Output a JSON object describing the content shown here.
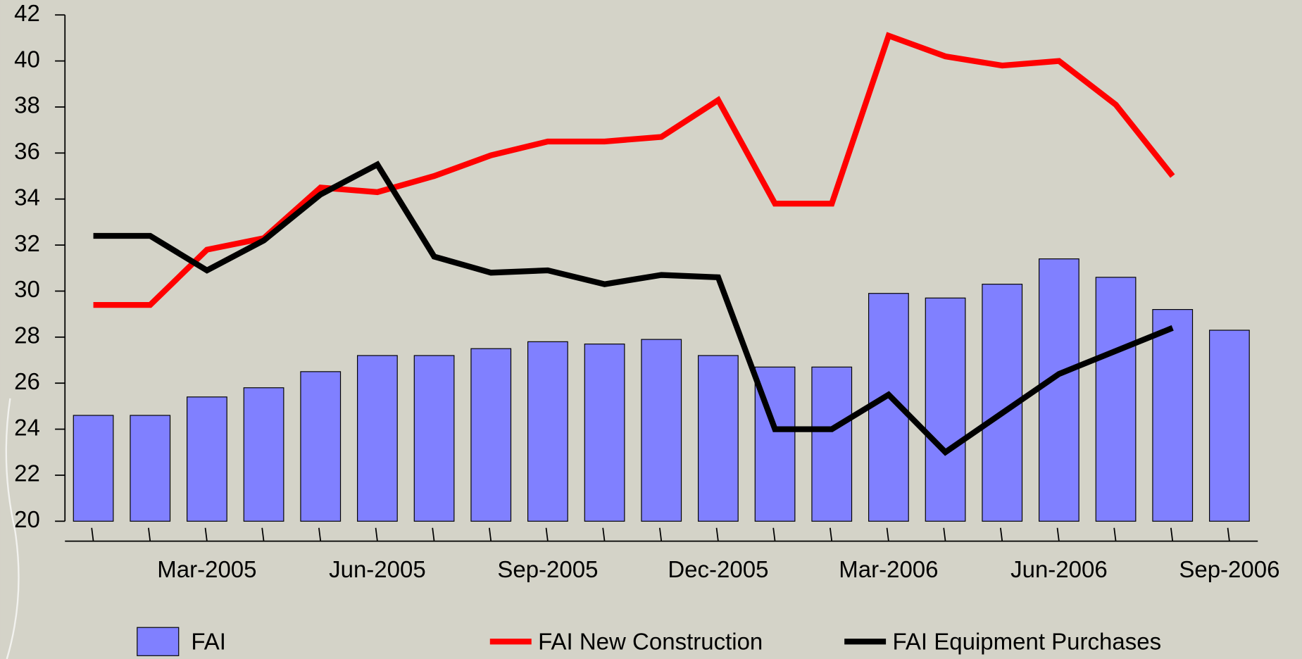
{
  "chart_data": {
    "type": "bar_line",
    "categories": [
      null,
      null,
      "Mar-2005",
      null,
      null,
      "Jun-2005",
      null,
      null,
      "Sep-2005",
      null,
      null,
      "Dec-2005",
      null,
      null,
      "Mar-2006",
      null,
      null,
      "Jun-2006",
      null,
      null,
      "Sep-2006"
    ],
    "series": [
      {
        "name": "FAI",
        "type": "bar",
        "color": "#8080ff",
        "values": [
          24.6,
          24.6,
          25.4,
          25.8,
          26.5,
          27.2,
          27.2,
          27.5,
          27.8,
          27.7,
          27.9,
          27.2,
          26.7,
          26.7,
          29.9,
          29.7,
          30.3,
          31.4,
          30.6,
          29.2,
          28.3
        ]
      },
      {
        "name": "FAI New Construction",
        "type": "line",
        "color": "#ff0000",
        "values": [
          29.4,
          29.4,
          31.8,
          32.3,
          34.5,
          34.3,
          35.0,
          35.9,
          36.5,
          36.5,
          36.7,
          38.3,
          33.8,
          33.8,
          41.1,
          40.2,
          39.8,
          40.0,
          38.1,
          35.0,
          null
        ]
      },
      {
        "name": "FAI Equipment Purchases",
        "type": "line",
        "color": "#000000",
        "values": [
          32.4,
          32.4,
          30.9,
          32.2,
          34.2,
          35.5,
          31.5,
          30.8,
          30.9,
          30.3,
          30.7,
          30.6,
          24.0,
          24.0,
          25.5,
          23.0,
          24.7,
          26.4,
          27.4,
          28.4,
          null
        ]
      }
    ],
    "ylim": [
      20,
      42
    ],
    "yticks": [
      20,
      22,
      24,
      26,
      28,
      30,
      32,
      34,
      36,
      38,
      40,
      42
    ],
    "legend": "bottom"
  }
}
